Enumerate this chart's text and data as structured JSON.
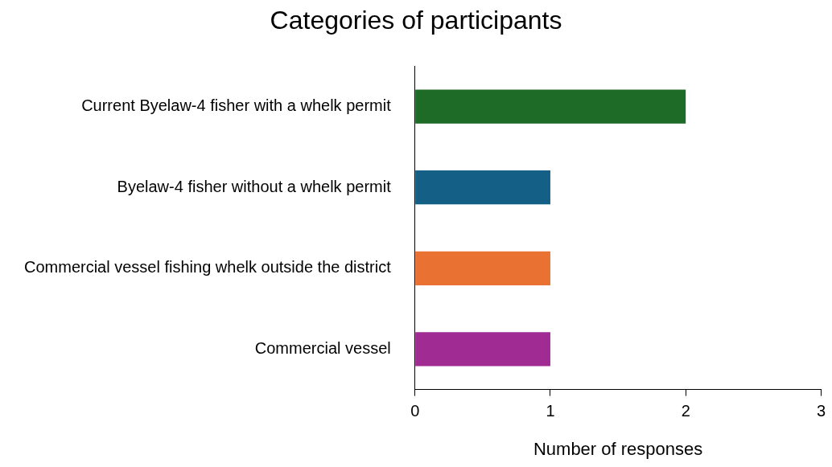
{
  "chart_data": {
    "type": "bar",
    "orientation": "horizontal",
    "title": "Categories of participants",
    "xlabel": "Number of responses",
    "categories": [
      "Current Byelaw-4 fisher with a whelk permit",
      "Byelaw-4 fisher without a whelk permit",
      "Commercial vessel fishing whelk outside the district",
      "Commercial vessel"
    ],
    "values": [
      2,
      1,
      1,
      1
    ],
    "colors": [
      "#1e6b27",
      "#135f85",
      "#e97132",
      "#a02b93"
    ],
    "xlim": [
      0,
      3
    ],
    "xticks": [
      0,
      1,
      2,
      3
    ],
    "grid": false,
    "legend": false
  }
}
